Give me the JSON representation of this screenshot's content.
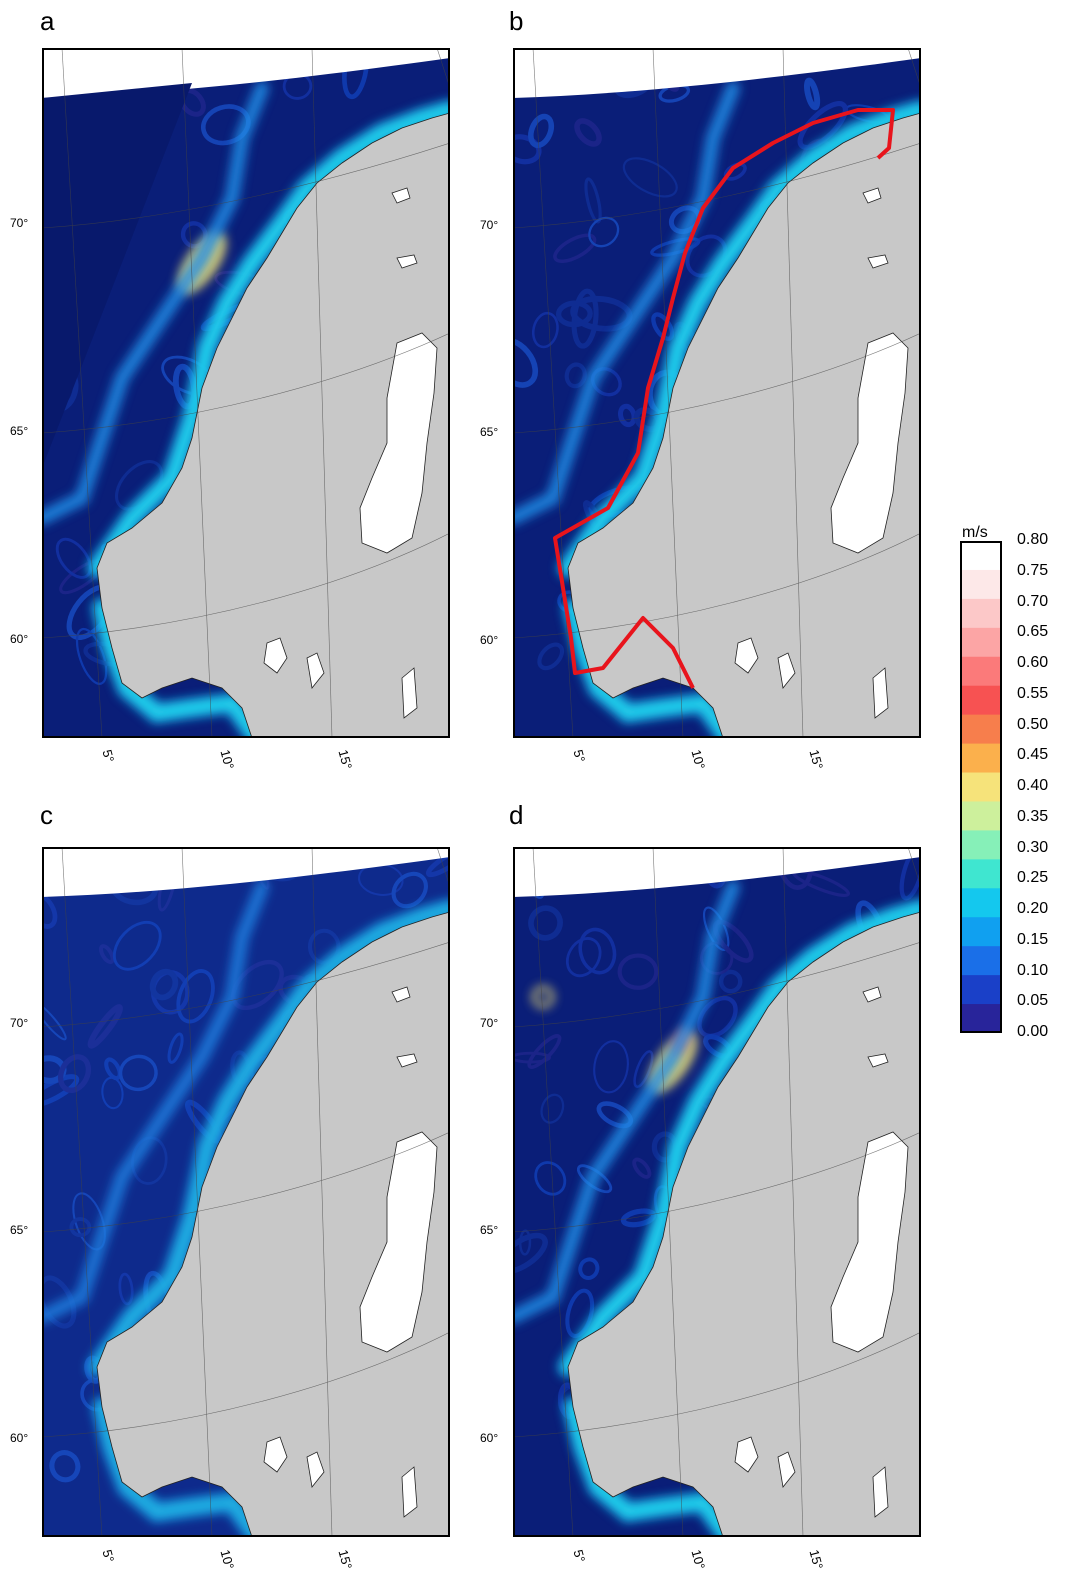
{
  "panels": [
    {
      "label": "a",
      "lat_ticks": [
        "70°",
        "65°",
        "60°"
      ],
      "lon_ticks": [
        "5°",
        "10°",
        "15°"
      ]
    },
    {
      "label": "b",
      "lat_ticks": [
        "70°",
        "65°",
        "60°"
      ],
      "lon_ticks": [
        "5°",
        "10°",
        "15°"
      ]
    },
    {
      "label": "c",
      "lat_ticks": [
        "70°",
        "65°",
        "60°"
      ],
      "lon_ticks": [
        "5°",
        "10°",
        "15°"
      ]
    },
    {
      "label": "d",
      "lat_ticks": [
        "70°",
        "65°",
        "60°"
      ],
      "lon_ticks": [
        "5°",
        "10°",
        "15°"
      ]
    }
  ],
  "colorbar": {
    "unit": "m/s",
    "ticks": [
      "0.80",
      "0.75",
      "0.70",
      "0.65",
      "0.60",
      "0.55",
      "0.50",
      "0.45",
      "0.40",
      "0.35",
      "0.30",
      "0.25",
      "0.20",
      "0.15",
      "0.10",
      "0.05",
      "0.00"
    ],
    "colors": [
      "#ffffff",
      "#fde8e8",
      "#fcc8c8",
      "#fca5a5",
      "#fb7a7a",
      "#f75252",
      "#f77e4c",
      "#fbb04c",
      "#f6e37a",
      "#cdf09c",
      "#86f0b8",
      "#3fe6d0",
      "#14c8ee",
      "#10a0f0",
      "#1a6fe8",
      "#1a40c8",
      "#28249a",
      "#0c1f78"
    ],
    "range": [
      0.0,
      0.8
    ],
    "step": 0.05
  },
  "colors": {
    "land": "#c8c8c8",
    "lake": "#ffffff",
    "deep_water": "#0a1e78",
    "section_line": "#e8141c"
  }
}
